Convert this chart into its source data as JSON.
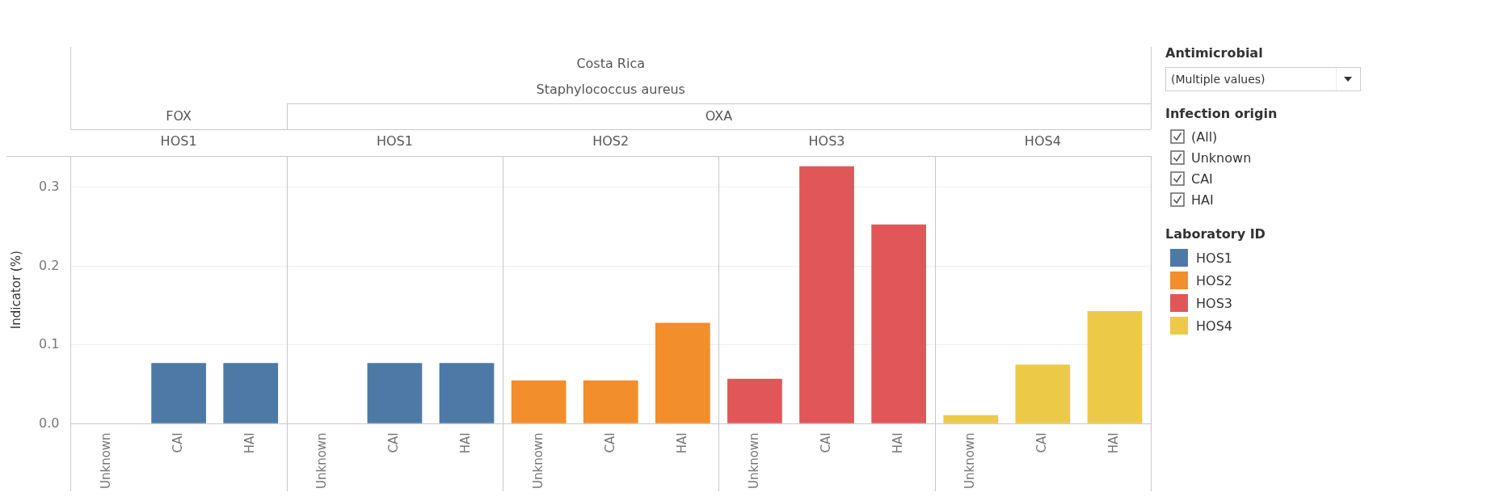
{
  "chart_data": {
    "type": "bar",
    "stacked": true,
    "categories": [
      "Unknown",
      "CAI",
      "HAI",
      "Unknown",
      "CAI",
      "HAI",
      "Unknown",
      "CAI",
      "HAI",
      "Unknown",
      "CAI",
      "HAI",
      "Unknown",
      "CAI",
      "HAI"
    ],
    "series": [
      {
        "name": "HOS1",
        "color": "#4e79a7",
        "values": [
          null,
          0.077,
          0.077,
          null,
          0.077,
          0.077,
          null,
          null,
          null,
          null,
          null,
          null,
          null,
          null,
          null
        ]
      },
      {
        "name": "HOS2",
        "color": "#f28e2b",
        "values": [
          null,
          null,
          null,
          null,
          null,
          null,
          0.055,
          0.055,
          0.128,
          null,
          null,
          null,
          null,
          null,
          null
        ]
      },
      {
        "name": "HOS3",
        "color": "#e15759",
        "values": [
          null,
          null,
          null,
          null,
          null,
          null,
          null,
          null,
          null,
          0.057,
          0.327,
          0.253,
          null,
          null,
          null
        ]
      },
      {
        "name": "HOS4",
        "color": "#edc948",
        "values": [
          null,
          null,
          null,
          null,
          null,
          null,
          null,
          null,
          null,
          null,
          null,
          null,
          0.011,
          0.075,
          0.143
        ]
      }
    ],
    "ylabel": "Indicator (%)",
    "ylim": [
      0,
      0.34
    ],
    "yticks": [
      {
        "value": 0,
        "label": "0.0"
      },
      0.1,
      0.2,
      0.3
    ],
    "grid": "y",
    "legend": "right",
    "legend_title": "Laboratory ID",
    "annotations": [
      "Costa Rica",
      "Staphylococcus aureus",
      "FOX",
      "OXA",
      "HOS1",
      "HOS1",
      "HOS2",
      "HOS3",
      "HOS4",
      "Antimicrobial",
      "(Multiple values)",
      "Infection origin",
      "(All)",
      "Unknown",
      "CAI",
      "HAI"
    ]
  }
}
